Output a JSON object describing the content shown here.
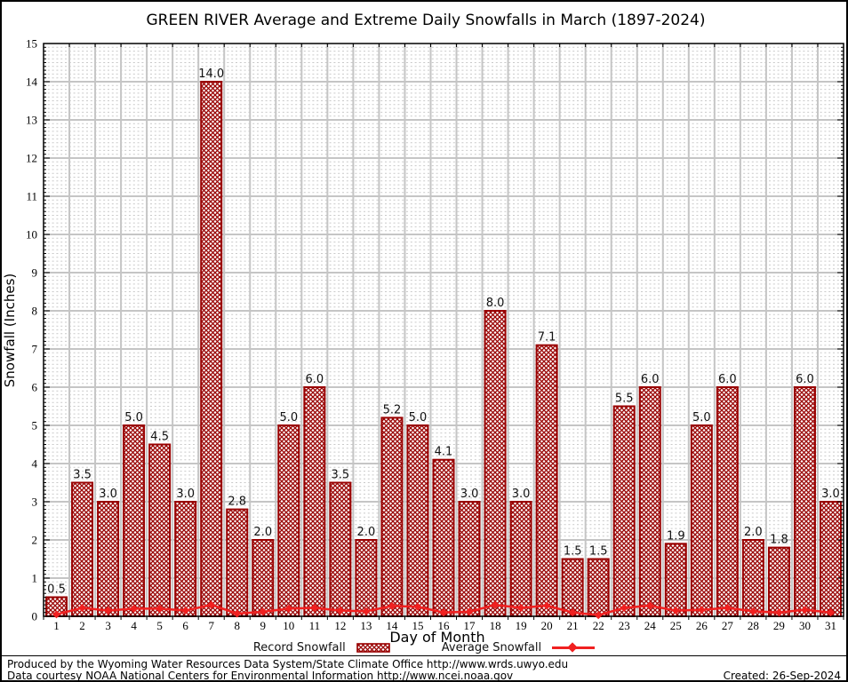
{
  "title": "GREEN RIVER Average and Extreme Daily Snowfalls in March (1897-2024)",
  "chart_data": {
    "type": "bar",
    "x": [
      1,
      2,
      3,
      4,
      5,
      6,
      7,
      8,
      9,
      10,
      11,
      12,
      13,
      14,
      15,
      16,
      17,
      18,
      19,
      20,
      21,
      22,
      23,
      24,
      25,
      26,
      27,
      28,
      29,
      30,
      31
    ],
    "series": [
      {
        "name": "Record Snowfall",
        "type": "bar",
        "values": [
          0.5,
          3.5,
          3.0,
          5.0,
          4.5,
          3.0,
          14.0,
          2.8,
          2.0,
          5.0,
          6.0,
          3.5,
          2.0,
          5.2,
          5.0,
          4.1,
          3.0,
          8.0,
          3.0,
          7.1,
          1.5,
          1.5,
          5.5,
          6.0,
          1.9,
          5.0,
          6.0,
          2.0,
          1.8,
          6.0,
          3.0
        ]
      },
      {
        "name": "Average Snowfall",
        "type": "line",
        "values": [
          0.05,
          0.22,
          0.15,
          0.2,
          0.2,
          0.15,
          0.3,
          0.07,
          0.12,
          0.2,
          0.22,
          0.15,
          0.13,
          0.27,
          0.25,
          0.1,
          0.12,
          0.3,
          0.22,
          0.28,
          0.1,
          0.03,
          0.22,
          0.28,
          0.15,
          0.17,
          0.22,
          0.13,
          0.1,
          0.17,
          0.1
        ]
      }
    ],
    "title": "GREEN RIVER Average and Extreme Daily Snowfalls in March (1897-2024)",
    "xlabel": "Day of Month",
    "ylabel": "Snowfall (Inches)",
    "ylim": [
      0,
      15
    ],
    "y_major_step": 1,
    "y_minor_step": 0.1,
    "grid": true,
    "legend_position": "bottom",
    "bar_labels_decimals": 1,
    "colors": {
      "bar_outline": "#990000",
      "bar_hatch": "#990000",
      "avg_line": "#f02020",
      "grid_major": "#c5c5c5",
      "grid_minor": "#c9c9c9",
      "axis": "#000000",
      "value_label": "#111111"
    }
  },
  "legend": {
    "record_label": "Record Snowfall",
    "average_label": "Average Snowfall"
  },
  "footer": {
    "line1": "Produced by the Wyoming Water Resources Data System/State Climate Office http://www.wrds.uwyo.edu",
    "line2": "Data courtesy NOAA National Centers for Environmental Information http://www.ncei.noaa.gov",
    "created": "Created: 26-Sep-2024"
  }
}
